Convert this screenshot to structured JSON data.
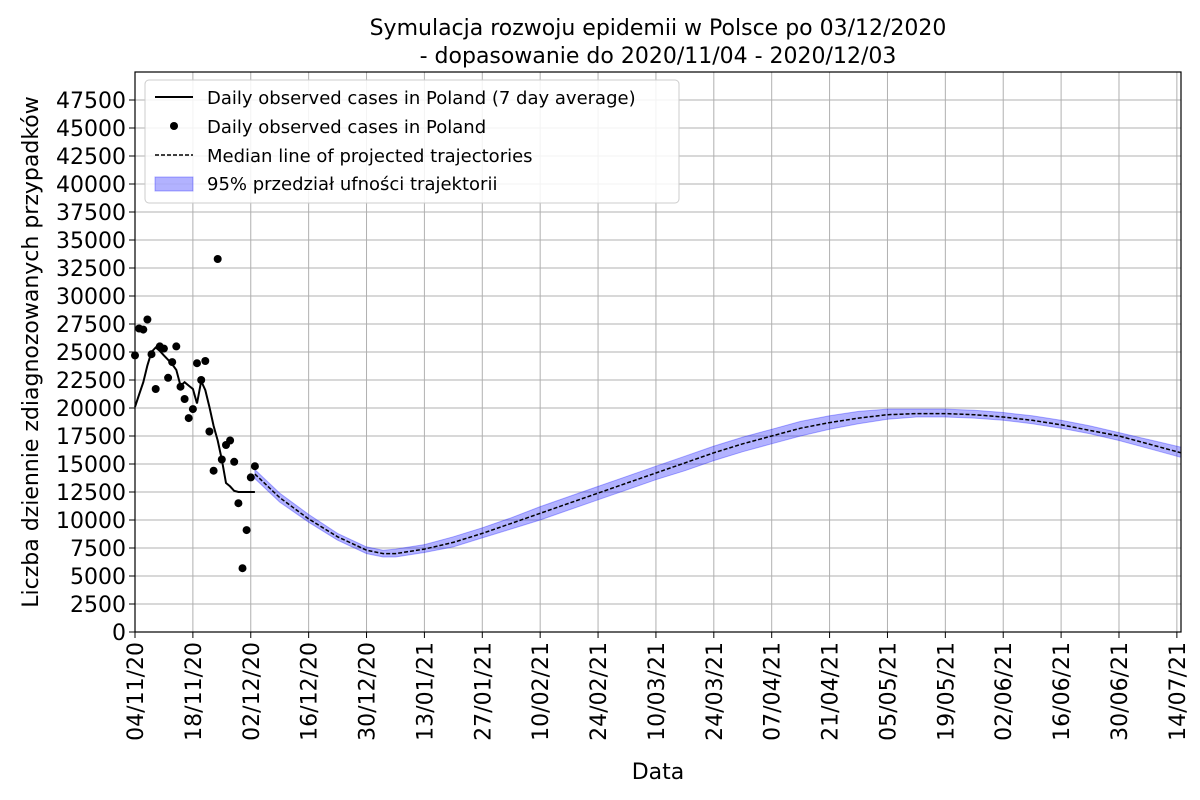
{
  "chart_data": {
    "type": "line",
    "title": [
      "Symulacja rozwoju epidemii w Polsce po 03/12/2020",
      "- dopasowanie do 2020/11/04 - 2020/12/03"
    ],
    "xlabel": "Data",
    "ylabel": "Liczba dziennie zdiagnozowanych przypadków",
    "x_start_date": "2020-11-04",
    "x_end_date": "2021-07-15",
    "xlim_days": [
      0,
      253
    ],
    "ylim": [
      0,
      50000
    ],
    "grid": true,
    "legend_position": "top-left",
    "x_ticks": [
      {
        "day": 0,
        "label": "04/11/20"
      },
      {
        "day": 14,
        "label": "18/11/20"
      },
      {
        "day": 28,
        "label": "02/12/20"
      },
      {
        "day": 42,
        "label": "16/12/20"
      },
      {
        "day": 56,
        "label": "30/12/20"
      },
      {
        "day": 70,
        "label": "13/01/21"
      },
      {
        "day": 84,
        "label": "27/01/21"
      },
      {
        "day": 98,
        "label": "10/02/21"
      },
      {
        "day": 112,
        "label": "24/02/21"
      },
      {
        "day": 126,
        "label": "10/03/21"
      },
      {
        "day": 140,
        "label": "24/03/21"
      },
      {
        "day": 154,
        "label": "07/04/21"
      },
      {
        "day": 168,
        "label": "21/04/21"
      },
      {
        "day": 182,
        "label": "05/05/21"
      },
      {
        "day": 196,
        "label": "19/05/21"
      },
      {
        "day": 210,
        "label": "02/06/21"
      },
      {
        "day": 224,
        "label": "16/06/21"
      },
      {
        "day": 238,
        "label": "30/06/21"
      },
      {
        "day": 252,
        "label": "14/07/21"
      }
    ],
    "y_ticks": [
      0,
      2500,
      5000,
      7500,
      10000,
      12500,
      15000,
      17500,
      20000,
      22500,
      25000,
      27500,
      30000,
      32500,
      35000,
      37500,
      40000,
      42500,
      45000,
      47500
    ],
    "series": [
      {
        "name": "Daily observed cases in Poland (7 day average)",
        "style": "line",
        "color": "#000000",
        "x": [
          0,
          1,
          2,
          3,
          4,
          5,
          6,
          7,
          8,
          9,
          10,
          11,
          12,
          13,
          14,
          15,
          16,
          17,
          18,
          19,
          20,
          21,
          22,
          23,
          24,
          25,
          26,
          27,
          28,
          29
        ],
        "y": [
          20100,
          21200,
          22300,
          23800,
          25000,
          25400,
          25100,
          24700,
          24300,
          23900,
          23400,
          22000,
          22300,
          22000,
          21700,
          20400,
          22400,
          21600,
          20100,
          18400,
          17100,
          15400,
          13300,
          13000,
          12600,
          12500,
          12500,
          12500,
          12500,
          12500
        ]
      },
      {
        "name": "Daily observed cases in Poland",
        "style": "scatter",
        "color": "#000000",
        "x": [
          0,
          1,
          2,
          3,
          4,
          5,
          6,
          7,
          8,
          9,
          10,
          11,
          12,
          13,
          14,
          15,
          16,
          17,
          18,
          19,
          20,
          21,
          22,
          23,
          24,
          25,
          26,
          27,
          28,
          29
        ],
        "y": [
          24700,
          27100,
          27000,
          27900,
          24800,
          21700,
          25500,
          25300,
          22700,
          24100,
          25500,
          21900,
          20800,
          19100,
          19900,
          24000,
          22500,
          24200,
          17900,
          14400,
          33300,
          15400,
          16700,
          17100,
          15200,
          11500,
          5700,
          9100,
          13800,
          14800
        ]
      },
      {
        "name": "Median line of projected trajectories",
        "style": "dashed",
        "color": "#000000",
        "x": [
          29,
          35,
          42,
          49,
          56,
          60,
          63,
          70,
          77,
          84,
          91,
          98,
          105,
          112,
          119,
          126,
          133,
          140,
          147,
          154,
          161,
          168,
          175,
          182,
          189,
          196,
          203,
          210,
          217,
          224,
          231,
          238,
          245,
          253
        ],
        "y": [
          14100,
          12000,
          10100,
          8500,
          7300,
          7000,
          7000,
          7400,
          8000,
          8800,
          9700,
          10600,
          11500,
          12400,
          13300,
          14200,
          15100,
          16000,
          16800,
          17500,
          18200,
          18700,
          19100,
          19400,
          19500,
          19500,
          19400,
          19200,
          18900,
          18500,
          18000,
          17500,
          16800,
          16000
        ]
      },
      {
        "name": "95% przedział ufności trajektorii",
        "style": "band",
        "color": "#0000ff",
        "x": [
          29,
          35,
          42,
          49,
          56,
          60,
          63,
          70,
          77,
          84,
          91,
          98,
          105,
          112,
          119,
          126,
          133,
          140,
          147,
          154,
          161,
          168,
          175,
          182,
          189,
          196,
          203,
          210,
          217,
          224,
          231,
          238,
          245,
          253
        ],
        "lower": [
          13700,
          11600,
          9800,
          8200,
          7000,
          6700,
          6700,
          7100,
          7600,
          8400,
          9200,
          10000,
          10900,
          11800,
          12700,
          13600,
          14400,
          15300,
          16100,
          16800,
          17500,
          18100,
          18600,
          19000,
          19200,
          19200,
          19100,
          18900,
          18600,
          18200,
          17700,
          17100,
          16400,
          15600
        ],
        "upper": [
          14500,
          12400,
          10500,
          8800,
          7600,
          7300,
          7400,
          7800,
          8500,
          9300,
          10200,
          11200,
          12100,
          13000,
          13900,
          14800,
          15700,
          16600,
          17400,
          18100,
          18800,
          19300,
          19700,
          19900,
          19900,
          19900,
          19800,
          19600,
          19300,
          18900,
          18400,
          17800,
          17200,
          16500
        ]
      }
    ]
  }
}
